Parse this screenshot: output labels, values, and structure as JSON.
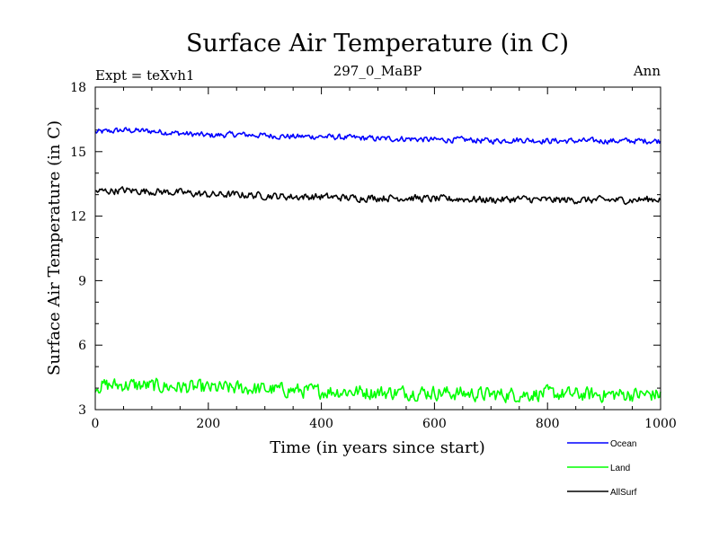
{
  "chart_data": {
    "type": "line",
    "title": "Surface Air Temperature (in C)",
    "subtitle_left": "Expt = teXvh1",
    "subtitle_center": "297_0_MaBP",
    "subtitle_right": "Ann",
    "xlabel": "Time (in years since start)",
    "ylabel": "Surface Air Temperature (in C)",
    "xlim": [
      0,
      1000
    ],
    "ylim": [
      3,
      18
    ],
    "xticks": [
      0,
      200,
      400,
      600,
      800,
      1000
    ],
    "yticks": [
      3,
      6,
      9,
      12,
      15,
      18
    ],
    "x_minor_step": 50,
    "y_minor_step": 1,
    "legend_position": "bottom-right",
    "series": [
      {
        "name": "Ocean",
        "color": "#0000ff",
        "x": [
          0,
          50,
          100,
          150,
          200,
          250,
          300,
          350,
          400,
          450,
          500,
          550,
          600,
          650,
          700,
          750,
          800,
          850,
          900,
          950,
          1000
        ],
        "values": [
          15.9,
          16.0,
          15.95,
          15.85,
          15.75,
          15.8,
          15.75,
          15.7,
          15.7,
          15.65,
          15.6,
          15.6,
          15.55,
          15.55,
          15.5,
          15.55,
          15.5,
          15.5,
          15.5,
          15.5,
          15.5
        ],
        "noise": 0.12
      },
      {
        "name": "Land",
        "color": "#00ff00",
        "x": [
          0,
          50,
          100,
          150,
          200,
          250,
          300,
          350,
          400,
          450,
          500,
          550,
          600,
          650,
          700,
          750,
          800,
          850,
          900,
          950,
          1000
        ],
        "values": [
          4.1,
          4.15,
          4.1,
          4.05,
          4.0,
          4.0,
          3.95,
          3.9,
          3.85,
          3.85,
          3.8,
          3.8,
          3.8,
          3.75,
          3.7,
          3.7,
          3.75,
          3.7,
          3.7,
          3.7,
          3.7
        ],
        "noise": 0.3
      },
      {
        "name": "AllSurf",
        "color": "#000000",
        "x": [
          0,
          50,
          100,
          150,
          200,
          250,
          300,
          350,
          400,
          450,
          500,
          550,
          600,
          650,
          700,
          750,
          800,
          850,
          900,
          950,
          1000
        ],
        "values": [
          13.15,
          13.2,
          13.15,
          13.1,
          13.0,
          13.0,
          12.95,
          12.9,
          12.9,
          12.85,
          12.85,
          12.85,
          12.8,
          12.8,
          12.75,
          12.8,
          12.75,
          12.75,
          12.75,
          12.75,
          12.8
        ],
        "noise": 0.15
      }
    ]
  }
}
